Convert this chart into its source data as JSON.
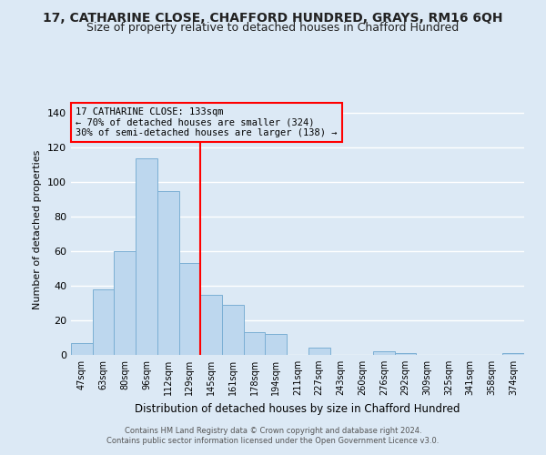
{
  "title1": "17, CATHARINE CLOSE, CHAFFORD HUNDRED, GRAYS, RM16 6QH",
  "title2": "Size of property relative to detached houses in Chafford Hundred",
  "xlabel": "Distribution of detached houses by size in Chafford Hundred",
  "ylabel": "Number of detached properties",
  "bar_labels": [
    "47sqm",
    "63sqm",
    "80sqm",
    "96sqm",
    "112sqm",
    "129sqm",
    "145sqm",
    "161sqm",
    "178sqm",
    "194sqm",
    "211sqm",
    "227sqm",
    "243sqm",
    "260sqm",
    "276sqm",
    "292sqm",
    "309sqm",
    "325sqm",
    "341sqm",
    "358sqm",
    "374sqm"
  ],
  "bar_heights": [
    7,
    38,
    60,
    114,
    95,
    53,
    35,
    29,
    13,
    12,
    0,
    4,
    0,
    0,
    2,
    1,
    0,
    0,
    0,
    0,
    1
  ],
  "bar_color": "#bdd7ee",
  "bar_edge_color": "#7bafd4",
  "vline_x_index": 5,
  "vline_color": "red",
  "ylim_max": 145,
  "yticks": [
    0,
    20,
    40,
    60,
    80,
    100,
    120,
    140
  ],
  "annotation_title": "17 CATHARINE CLOSE: 133sqm",
  "annotation_line1": "← 70% of detached houses are smaller (324)",
  "annotation_line2": "30% of semi-detached houses are larger (138) →",
  "annotation_box_color": "red",
  "footnote1": "Contains HM Land Registry data © Crown copyright and database right 2024.",
  "footnote2": "Contains public sector information licensed under the Open Government Licence v3.0.",
  "background_color": "#dce9f5",
  "plot_bg_color": "#dce9f5",
  "grid_color": "white",
  "title1_fontsize": 10,
  "title2_fontsize": 9
}
